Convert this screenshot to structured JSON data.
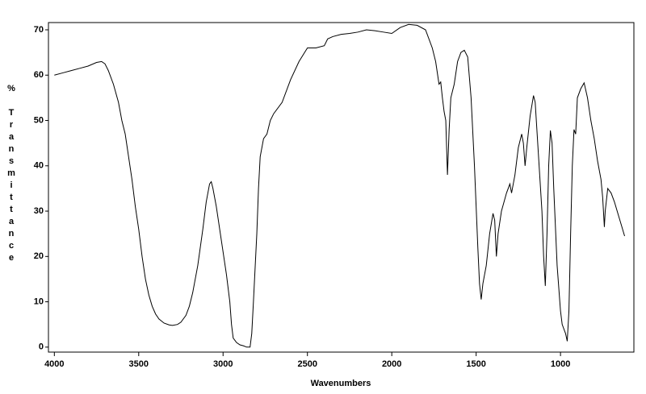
{
  "chart_data": {
    "type": "line",
    "x_label": "Wavenumbers",
    "y_label": "% Transmittance",
    "color": "#000000",
    "xlim": [
      4035,
      565
    ],
    "ylim": [
      -1.1,
      71.6
    ],
    "xticks": [
      4000,
      3500,
      3000,
      2500,
      2000,
      1500,
      1000
    ],
    "yticks": [
      0,
      10,
      20,
      30,
      40,
      50,
      60,
      70
    ],
    "x": [
      4000,
      3950,
      3900,
      3850,
      3800,
      3750,
      3720,
      3700,
      3680,
      3650,
      3620,
      3600,
      3580,
      3560,
      3540,
      3520,
      3500,
      3480,
      3460,
      3440,
      3420,
      3400,
      3380,
      3350,
      3320,
      3300,
      3270,
      3250,
      3220,
      3200,
      3180,
      3150,
      3120,
      3100,
      3080,
      3070,
      3060,
      3040,
      3020,
      3000,
      2980,
      2960,
      2950,
      2940,
      2920,
      2900,
      2880,
      2860,
      2840,
      2830,
      2820,
      2800,
      2790,
      2780,
      2760,
      2740,
      2720,
      2700,
      2650,
      2600,
      2550,
      2500,
      2450,
      2400,
      2380,
      2350,
      2300,
      2250,
      2200,
      2150,
      2100,
      2050,
      2000,
      1950,
      1900,
      1850,
      1800,
      1760,
      1740,
      1720,
      1710,
      1700,
      1690,
      1680,
      1670,
      1660,
      1650,
      1630,
      1610,
      1590,
      1570,
      1550,
      1530,
      1510,
      1490,
      1480,
      1470,
      1460,
      1440,
      1420,
      1400,
      1390,
      1380,
      1370,
      1350,
      1320,
      1300,
      1290,
      1270,
      1250,
      1230,
      1220,
      1210,
      1200,
      1180,
      1160,
      1150,
      1130,
      1110,
      1100,
      1090,
      1080,
      1070,
      1060,
      1050,
      1040,
      1020,
      1000,
      990,
      970,
      960,
      950,
      940,
      930,
      920,
      910,
      900,
      880,
      860,
      840,
      820,
      800,
      780,
      760,
      750,
      740,
      735,
      720,
      700,
      680,
      660,
      640,
      620
    ],
    "values": [
      60,
      60.5,
      61,
      61.5,
      62,
      62.8,
      63,
      62.5,
      61,
      58,
      54,
      50,
      47,
      42,
      37,
      31,
      26,
      20,
      15,
      11.5,
      9,
      7.3,
      6.2,
      5.3,
      4.9,
      4.8,
      5,
      5.5,
      7,
      9,
      12,
      18,
      26,
      32,
      36,
      36.5,
      35,
      31,
      26,
      21,
      16,
      10,
      5,
      2,
      1,
      0.5,
      0.3,
      0,
      0,
      3,
      10,
      25,
      35,
      42,
      46,
      47,
      50,
      51.5,
      54,
      59,
      63,
      66,
      66,
      66.5,
      68,
      68.5,
      69,
      69.2,
      69.5,
      70,
      69.8,
      69.5,
      69.2,
      70.5,
      71.2,
      71,
      70,
      66,
      63,
      58,
      58.5,
      55,
      52,
      50,
      38,
      48,
      55,
      58,
      63,
      65,
      65.5,
      64,
      55,
      40,
      22,
      14,
      10.5,
      14,
      18,
      25,
      29.5,
      28,
      20,
      25,
      30,
      34,
      36,
      34,
      38,
      44,
      47,
      45,
      40,
      44,
      51,
      55.5,
      54,
      42,
      30,
      20,
      13.5,
      25,
      40,
      47.8,
      45,
      35,
      18,
      8,
      5,
      3,
      1.3,
      8,
      25,
      40,
      48,
      47,
      55,
      57,
      58.3,
      55,
      50,
      46,
      41,
      37,
      33,
      26.5,
      30,
      35,
      34,
      32,
      29.5,
      27,
      24.5
    ]
  }
}
